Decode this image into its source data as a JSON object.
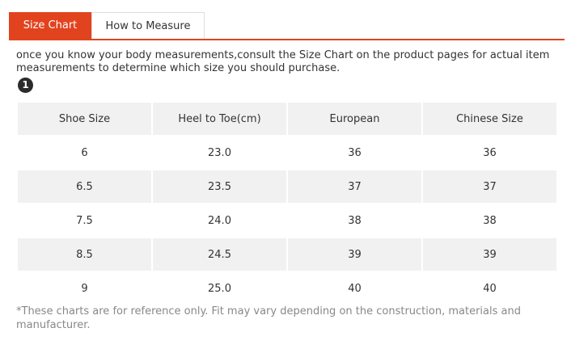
{
  "tabs": [
    {
      "label": "Size Chart",
      "active": true
    },
    {
      "label": "How to Measure",
      "active": false
    }
  ],
  "intro_text": "once you know your body measurements,consult the Size Chart on the product pages for actual item measurements to determine which size you should purchase.",
  "step_badge": "1",
  "table": {
    "headers": [
      "Shoe Size",
      "Heel to Toe(cm)",
      "European",
      "Chinese Size"
    ],
    "rows": [
      [
        "6",
        "23.0",
        "36",
        "36"
      ],
      [
        "6.5",
        "23.5",
        "37",
        "37"
      ],
      [
        "7.5",
        "24.0",
        "38",
        "38"
      ],
      [
        "8.5",
        "24.5",
        "39",
        "39"
      ],
      [
        "9",
        "25.0",
        "40",
        "40"
      ]
    ]
  },
  "footnote": "*These charts are for reference only. Fit may vary depending on the construction, materials and manufacturer.",
  "colors": {
    "accent": "#e2431f",
    "header_bg": "#f1f1f1",
    "footnote_text": "#888888"
  }
}
